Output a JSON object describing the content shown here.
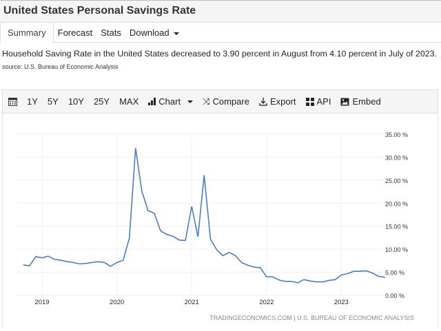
{
  "header": {
    "title": "United States Personal Savings Rate"
  },
  "tabs": [
    {
      "label": "Summary",
      "active": true
    },
    {
      "label": "Forecast"
    },
    {
      "label": "Stats"
    },
    {
      "label": "Download"
    }
  ],
  "description": "Household Saving Rate in the United States decreased to 3.90 percent in August from 4.10 percent in July of 2023.",
  "source": "source: U.S. Bureau of Economic Analysis",
  "toolbar": {
    "calendar_icon": "calendar-icon",
    "ranges": [
      "1Y",
      "5Y",
      "10Y",
      "25Y",
      "MAX"
    ],
    "chart": "Chart",
    "compare": "Compare",
    "export": "Export",
    "api": "API",
    "embed": "Embed"
  },
  "chart_data": {
    "type": "line",
    "color": "#4a7ebb",
    "credit": "TRADINGECONOMICS.COM | U.S. BUREAU OF ECONOMIC ANALYSIS",
    "x_start": "2018-10",
    "x_end": "2023-08",
    "frequency": "monthly",
    "xticks": [
      "2019",
      "2020",
      "2021",
      "2022",
      "2023"
    ],
    "yticks": [
      "0.00 %",
      "5.00 %",
      "10.00 %",
      "15.00 %",
      "20.00 %",
      "25.00 %",
      "30.00 %",
      "35.00 %"
    ],
    "ylim": [
      0,
      35
    ],
    "grid": true,
    "y_axis_side": "right",
    "values": [
      6.6,
      6.4,
      8.4,
      8.1,
      8.5,
      7.8,
      7.6,
      7.3,
      7.1,
      6.8,
      6.9,
      7.1,
      7.3,
      7.1,
      6.3,
      7.1,
      7.6,
      12.4,
      32.0,
      22.6,
      18.4,
      17.8,
      14.0,
      13.2,
      12.8,
      12.0,
      11.9,
      19.3,
      12.7,
      26.1,
      12.2,
      9.9,
      8.6,
      9.3,
      8.6,
      7.1,
      6.5,
      6.1,
      6.0,
      4.0,
      4.0,
      3.3,
      3.0,
      3.0,
      2.7,
      3.4,
      3.1,
      2.9,
      2.9,
      3.2,
      3.4,
      4.4,
      4.7,
      5.2,
      5.2,
      5.3,
      4.8,
      4.1,
      3.9
    ]
  }
}
